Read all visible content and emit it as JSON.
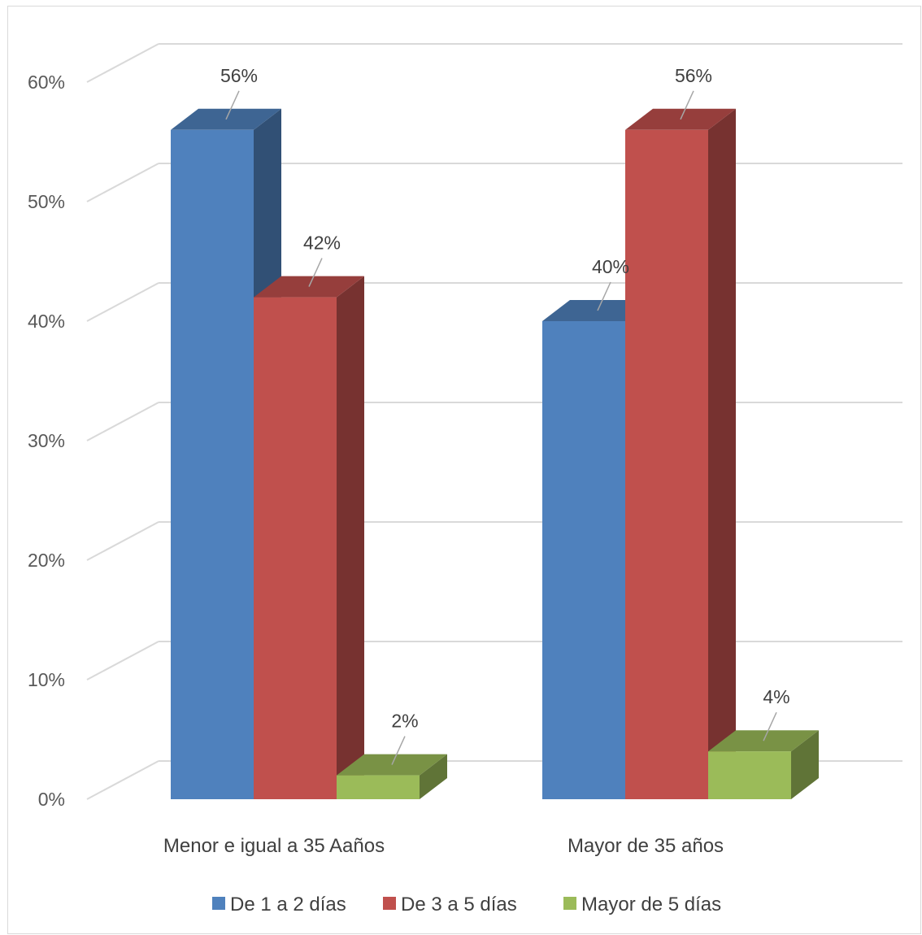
{
  "chart_data": {
    "type": "bar",
    "style": "3d-clustered-column",
    "categories": [
      "Menor e igual a 35 Aaños",
      "Mayor de 35 años"
    ],
    "series": [
      {
        "name": "De 1 a 2 días",
        "values": [
          0.56,
          0.4
        ],
        "labels": [
          "56%",
          "40%"
        ],
        "color": "#4f81bd"
      },
      {
        "name": "De 3  a 5 días",
        "values": [
          0.42,
          0.56
        ],
        "labels": [
          "42%",
          "56%"
        ],
        "color": "#c0504d"
      },
      {
        "name": "Mayor de 5 días",
        "values": [
          0.02,
          0.04
        ],
        "labels": [
          "2%",
          "4%"
        ],
        "color": "#9bbb59"
      }
    ],
    "yticks": [
      0,
      0.1,
      0.2,
      0.3,
      0.4,
      0.5,
      0.6
    ],
    "ytick_labels": [
      "0%",
      "10%",
      "20%",
      "30%",
      "40%",
      "50%",
      "60%"
    ],
    "ylim": [
      0,
      0.6
    ],
    "grid": true,
    "legend_position": "bottom",
    "title": "",
    "xlabel": "",
    "ylabel": ""
  }
}
